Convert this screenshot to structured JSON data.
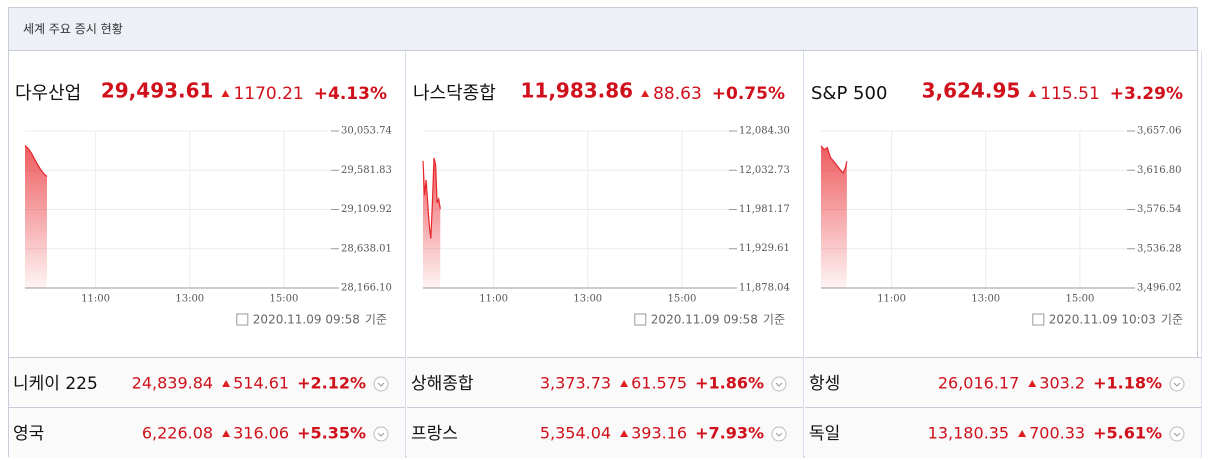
{
  "header": {
    "title": "세계 주요 증시 현황"
  },
  "panels": [
    {
      "name": "다우산업",
      "price": "29,493.61",
      "change": "1170.21",
      "pct": "+4.13%",
      "date": "2020.11.09 09:58",
      "date_suffix": "기준",
      "chart": {
        "type": "area",
        "color": "#e8262a",
        "x": [
          "09:30",
          "09:34",
          "09:38",
          "09:42",
          "09:46",
          "09:50",
          "09:54",
          "09:58"
        ],
        "values": [
          29880,
          29845,
          29790,
          29720,
          29650,
          29590,
          29540,
          29505
        ],
        "xlim": [
          "09:30",
          "16:00"
        ],
        "xticks": [
          "11:00",
          "13:00",
          "15:00"
        ],
        "ylim": [
          28166.1,
          30053.74
        ],
        "yticks": [
          {
            "value": 30053.74,
            "label": "30,053.74"
          },
          {
            "value": 29581.83,
            "label": "29,581.83"
          },
          {
            "value": 29109.92,
            "label": "29,109.92"
          },
          {
            "value": 28638.01,
            "label": "28,638.01"
          },
          {
            "value": 28166.1,
            "label": "28,166.10"
          }
        ]
      }
    },
    {
      "name": "나스닥종합",
      "price": "11,983.86",
      "change": "88.63",
      "pct": "+0.75%",
      "date": "2020.11.09 09:58",
      "date_suffix": "기준",
      "chart": {
        "type": "area",
        "color": "#e8262a",
        "x": [
          "09:30",
          "09:32",
          "09:34",
          "09:36",
          "09:38",
          "09:40",
          "09:42",
          "09:44",
          "09:46",
          "09:48",
          "09:50",
          "09:52"
        ],
        "values": [
          12045,
          12000,
          12020,
          11990,
          11960,
          11943,
          11990,
          12049,
          12040,
          11990,
          11995,
          11982
        ],
        "xlim": [
          "09:30",
          "16:00"
        ],
        "xticks": [
          "11:00",
          "13:00",
          "15:00"
        ],
        "ylim": [
          11878.04,
          12084.3
        ],
        "yticks": [
          {
            "value": 12084.3,
            "label": "12,084.30"
          },
          {
            "value": 12032.73,
            "label": "12,032.73"
          },
          {
            "value": 11981.17,
            "label": "11,981.17"
          },
          {
            "value": 11929.61,
            "label": "11,929.61"
          },
          {
            "value": 11878.04,
            "label": "11,878.04"
          }
        ]
      }
    },
    {
      "name": "S&P 500",
      "price": "3,624.95",
      "change": "115.51",
      "pct": "+3.29%",
      "date": "2020.11.09 10:03",
      "date_suffix": "기준",
      "chart": {
        "type": "area",
        "color": "#e8262a",
        "x": [
          "09:30",
          "09:34",
          "09:38",
          "09:42",
          "09:46",
          "09:50",
          "09:54",
          "09:58",
          "10:01",
          "10:03"
        ],
        "values": [
          3642,
          3638,
          3640,
          3630,
          3626,
          3622,
          3618,
          3614,
          3619,
          3626
        ],
        "xlim": [
          "09:30",
          "16:00"
        ],
        "xticks": [
          "11:00",
          "13:00",
          "15:00"
        ],
        "ylim": [
          3496.02,
          3657.06
        ],
        "yticks": [
          {
            "value": 3657.06,
            "label": "3,657.06"
          },
          {
            "value": 3616.8,
            "label": "3,616.80"
          },
          {
            "value": 3576.54,
            "label": "3,576.54"
          },
          {
            "value": 3536.28,
            "label": "3,536.28"
          },
          {
            "value": 3496.02,
            "label": "3,496.02"
          }
        ]
      }
    }
  ],
  "rows": [
    [
      {
        "name": "니케이 225",
        "price": "24,839.84",
        "change": "514.61",
        "pct": "+2.12%"
      },
      {
        "name": "상해종합",
        "price": "3,373.73",
        "change": "61.575",
        "pct": "+1.86%"
      },
      {
        "name": "항셍",
        "price": "26,016.17",
        "change": "303.2",
        "pct": "+1.18%"
      }
    ],
    [
      {
        "name": "영국",
        "price": "6,226.08",
        "change": "316.06",
        "pct": "+5.35%"
      },
      {
        "name": "프랑스",
        "price": "5,354.04",
        "change": "393.16",
        "pct": "+7.93%"
      },
      {
        "name": "독일",
        "price": "13,180.35",
        "change": "700.33",
        "pct": "+5.61%"
      }
    ]
  ]
}
